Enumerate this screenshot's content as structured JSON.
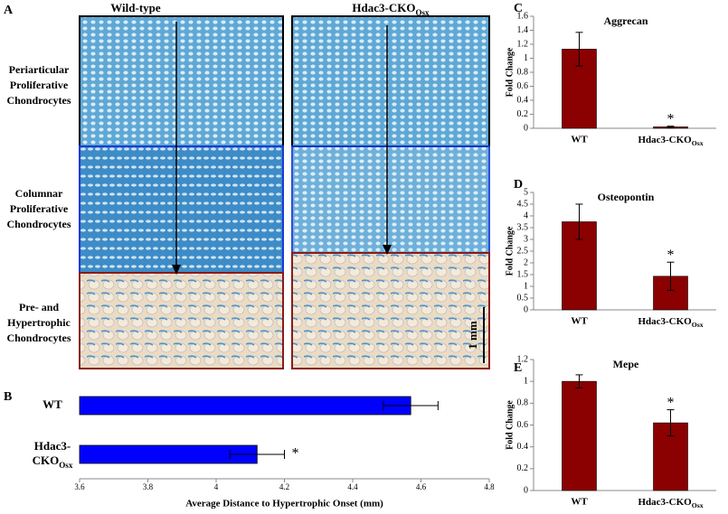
{
  "panel_a": {
    "panel": "A",
    "columns": [
      {
        "text": "Wild-type"
      },
      {
        "text": "Hdac3-CKO",
        "sub": "Osx"
      }
    ],
    "zones": [
      [
        "Periarticular",
        "Proliferative",
        "Chondrocytes"
      ],
      [
        "Columnar",
        "Proliferative",
        "Chondrocytes"
      ],
      [
        "Pre- and",
        "Hypertrophic",
        "Chondrocytes"
      ]
    ],
    "scale_bar": "1 mm"
  },
  "chart_data": [
    {
      "type": "barh",
      "panel": "B",
      "xlabel": "Average Distance to Hypertrophic Onset (mm)",
      "categories": [
        "WT",
        {
          "lines": [
            "Hdac3-",
            "CKO"
          ],
          "sub": "Osx"
        }
      ],
      "values": [
        4.57,
        4.12
      ],
      "errors": [
        0.08,
        0.08
      ],
      "color": "#0000ff",
      "star": "*",
      "xlim": [
        3.6,
        4.8
      ],
      "xticks": [
        3.6,
        3.8,
        4,
        4.2,
        4.4,
        4.6,
        4.8
      ]
    },
    {
      "type": "bar",
      "panel": "C",
      "title": "Aggrecan",
      "ylabel": "Fold Change",
      "categories": [
        "WT",
        {
          "text": "Hdac3-CKO",
          "sub": "Osx"
        }
      ],
      "values": [
        1.13,
        0.02
      ],
      "errors": [
        0.24,
        0.01
      ],
      "color": "#8b0000",
      "star": "*",
      "ylim": [
        0,
        1.6
      ],
      "yticks": [
        0,
        0.2,
        0.4,
        0.6,
        0.8,
        1,
        1.2,
        1.4,
        1.6
      ]
    },
    {
      "type": "bar",
      "panel": "D",
      "title": "Osteopontin",
      "ylabel": "Fold Change",
      "categories": [
        "WT",
        {
          "text": "Hdac3-CKO",
          "sub": "Osx"
        }
      ],
      "values": [
        3.75,
        1.43
      ],
      "errors": [
        0.75,
        0.6
      ],
      "color": "#8b0000",
      "star": "*",
      "ylim": [
        0,
        5
      ],
      "yticks": [
        0,
        0.5,
        1,
        1.5,
        2,
        2.5,
        3,
        3.5,
        4,
        4.5,
        5
      ]
    },
    {
      "type": "bar",
      "panel": "E",
      "title": "Mepe",
      "ylabel": "Fold Change",
      "categories": [
        "WT",
        {
          "text": "Hdac3-CKO",
          "sub": "Osx"
        }
      ],
      "values": [
        1.0,
        0.62
      ],
      "errors": [
        0.06,
        0.12
      ],
      "color": "#8b0000",
      "star": "*",
      "ylim": [
        0,
        1.2
      ],
      "yticks": [
        0,
        0.2,
        0.4,
        0.6,
        0.8,
        1,
        1.2
      ]
    }
  ]
}
